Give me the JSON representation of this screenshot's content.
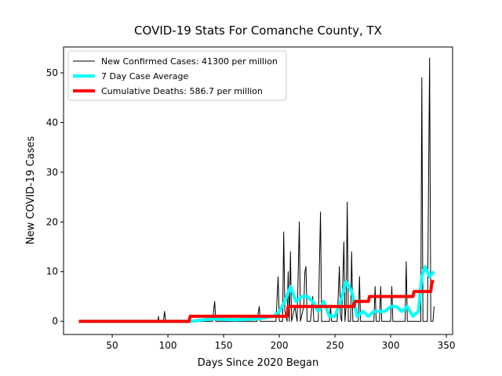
{
  "chart_data": {
    "type": "line",
    "title": "COVID-19 Stats For Comanche County, TX",
    "x_label": "Days Since 2020 Began",
    "y_label": "New COVID-19 Cases",
    "xlim": [
      6.3,
      355.6
    ],
    "ylim": [
      -2.65,
      55.2
    ],
    "xticks": [
      50,
      100,
      150,
      200,
      250,
      300,
      350
    ],
    "yticks": [
      0,
      10,
      20,
      30,
      40,
      50
    ],
    "legend": "upper left",
    "series": [
      {
        "name": "New Confirmed Cases: 41300 per million",
        "color": "#000000",
        "width": 1,
        "x": [
          20,
          91,
          91.5,
          92,
          96,
          97,
          98,
          140,
          142,
          143,
          180,
          182,
          183,
          197,
          199,
          200,
          203,
          204,
          205,
          207,
          208,
          209,
          210,
          211,
          214,
          216,
          218,
          219,
          222,
          223,
          224,
          225,
          228,
          230,
          231,
          235,
          237,
          238,
          245,
          246,
          247,
          252,
          254,
          255,
          256,
          258,
          259,
          260,
          261,
          262,
          264,
          265,
          266,
          271,
          272,
          273,
          285,
          286,
          287,
          290,
          291,
          292,
          300,
          301,
          302,
          313,
          314,
          315,
          325,
          327,
          328,
          329,
          333,
          335,
          336,
          338,
          339
        ],
        "values": [
          0,
          0,
          1,
          0,
          0,
          2,
          0,
          0,
          4,
          0,
          0,
          3,
          0,
          0,
          9,
          0,
          0,
          18,
          2,
          0,
          10,
          0,
          14,
          0,
          3,
          0,
          20,
          0,
          3,
          10,
          11,
          0,
          0,
          5,
          0,
          0,
          22,
          0,
          0,
          3,
          0,
          0,
          11,
          1,
          0,
          16,
          0,
          3,
          24,
          0,
          0,
          14,
          0,
          0,
          9,
          0,
          0,
          7,
          0,
          0,
          7,
          0,
          0,
          7,
          0,
          0,
          12,
          0,
          0,
          0,
          49,
          0,
          0,
          53,
          0,
          0,
          3
        ]
      },
      {
        "name": "7 Day Case Average",
        "color": "#00ffff",
        "width": 4,
        "x": [
          20,
          120,
          140,
          160,
          180,
          195,
          200,
          205,
          210,
          215,
          220,
          225,
          230,
          235,
          240,
          245,
          250,
          255,
          260,
          265,
          270,
          275,
          280,
          285,
          290,
          295,
          300,
          305,
          310,
          315,
          320,
          325,
          328,
          331,
          335,
          339
        ],
        "values": [
          0,
          0,
          0.5,
          0.3,
          0.5,
          1,
          2,
          4,
          7,
          4,
          5,
          5,
          4,
          2,
          4,
          1,
          1,
          4,
          8,
          6,
          1,
          2,
          1,
          2,
          2,
          2,
          3,
          3,
          2,
          3,
          1,
          2,
          9,
          11,
          9,
          10
        ]
      },
      {
        "name": "Cumulative Deaths: 586.7 per million",
        "color": "#ff0000",
        "width": 4,
        "x": [
          20,
          119,
          120,
          207,
          208,
          267,
          268,
          280,
          281,
          320,
          321,
          336,
          337,
          339
        ],
        "values": [
          0,
          0,
          1,
          1,
          3,
          3,
          4,
          4,
          5,
          5,
          6,
          6,
          8,
          8
        ]
      }
    ]
  }
}
